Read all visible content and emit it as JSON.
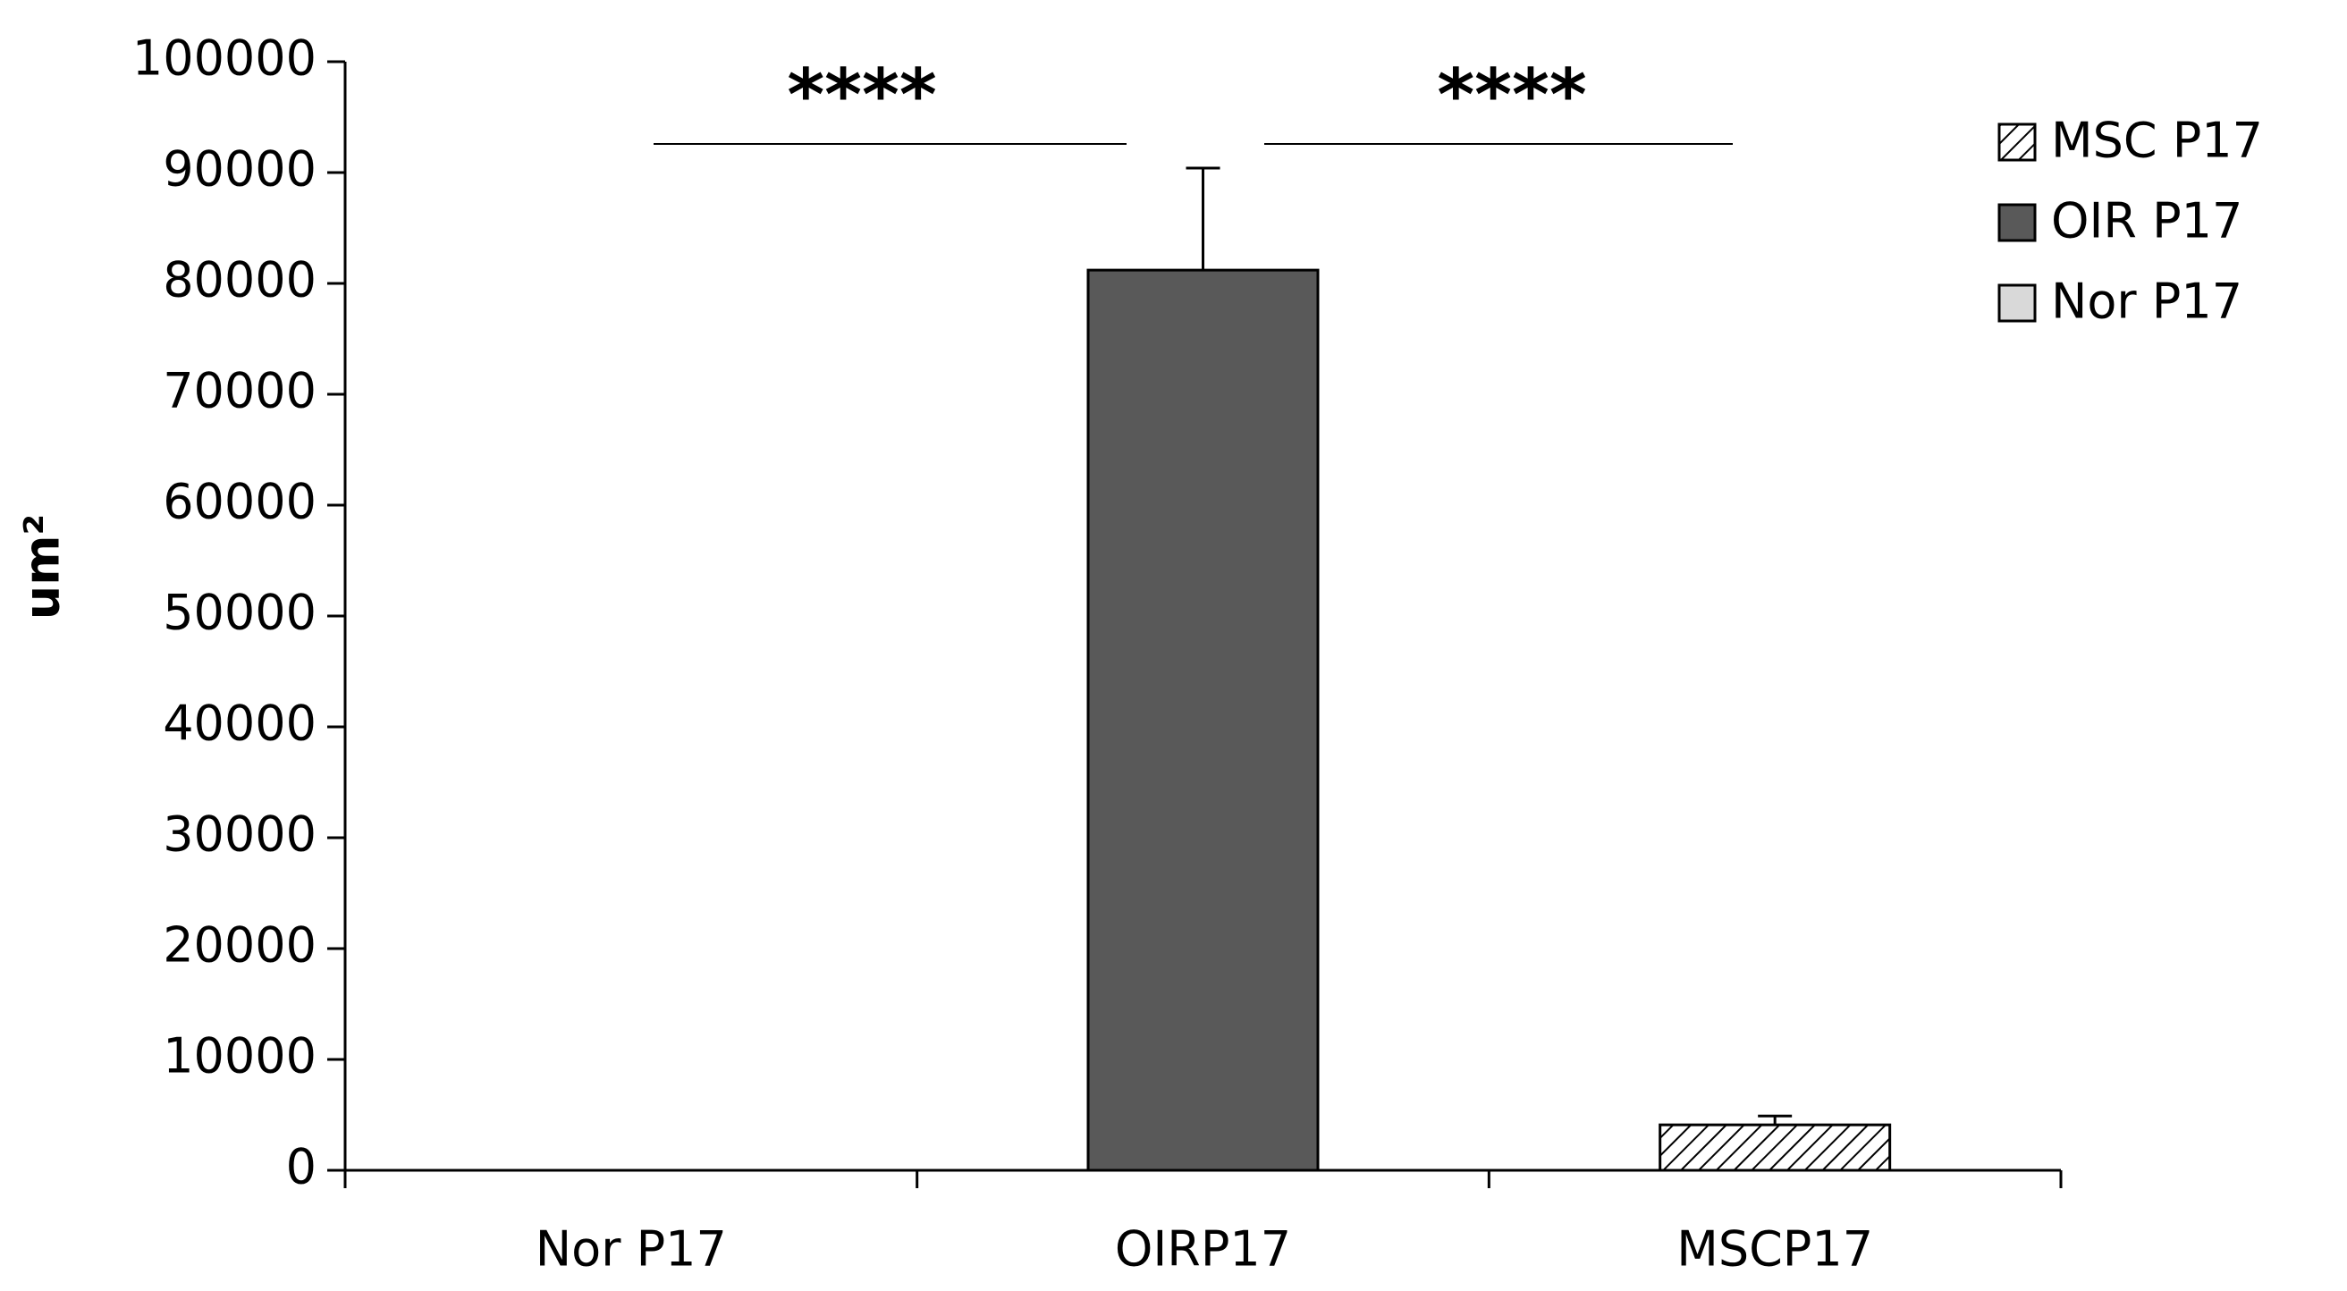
{
  "chart_data": {
    "type": "bar",
    "ylabel": "um²",
    "categories": [
      "Nor P17",
      "OIRP17",
      "MSCP17"
    ],
    "series": [
      {
        "name": "MSC P17",
        "color": "#ffffff",
        "pattern": "hatch",
        "values": [
          null,
          null,
          4100
        ],
        "errors": [
          null,
          null,
          800
        ]
      },
      {
        "name": "OIR P17",
        "color": "#595959",
        "values": [
          null,
          81200,
          null
        ],
        "errors": [
          null,
          9200,
          null
        ]
      },
      {
        "name": "Nor P17",
        "color": "#d9d9d9",
        "values": [
          0,
          null,
          null
        ],
        "errors": [
          null,
          null,
          null
        ]
      }
    ],
    "ylim": [
      0,
      100000
    ],
    "yticks": [
      0,
      10000,
      20000,
      30000,
      40000,
      50000,
      60000,
      70000,
      80000,
      90000,
      100000
    ],
    "annotations": [
      "****",
      "****"
    ],
    "legend": "top-right"
  }
}
